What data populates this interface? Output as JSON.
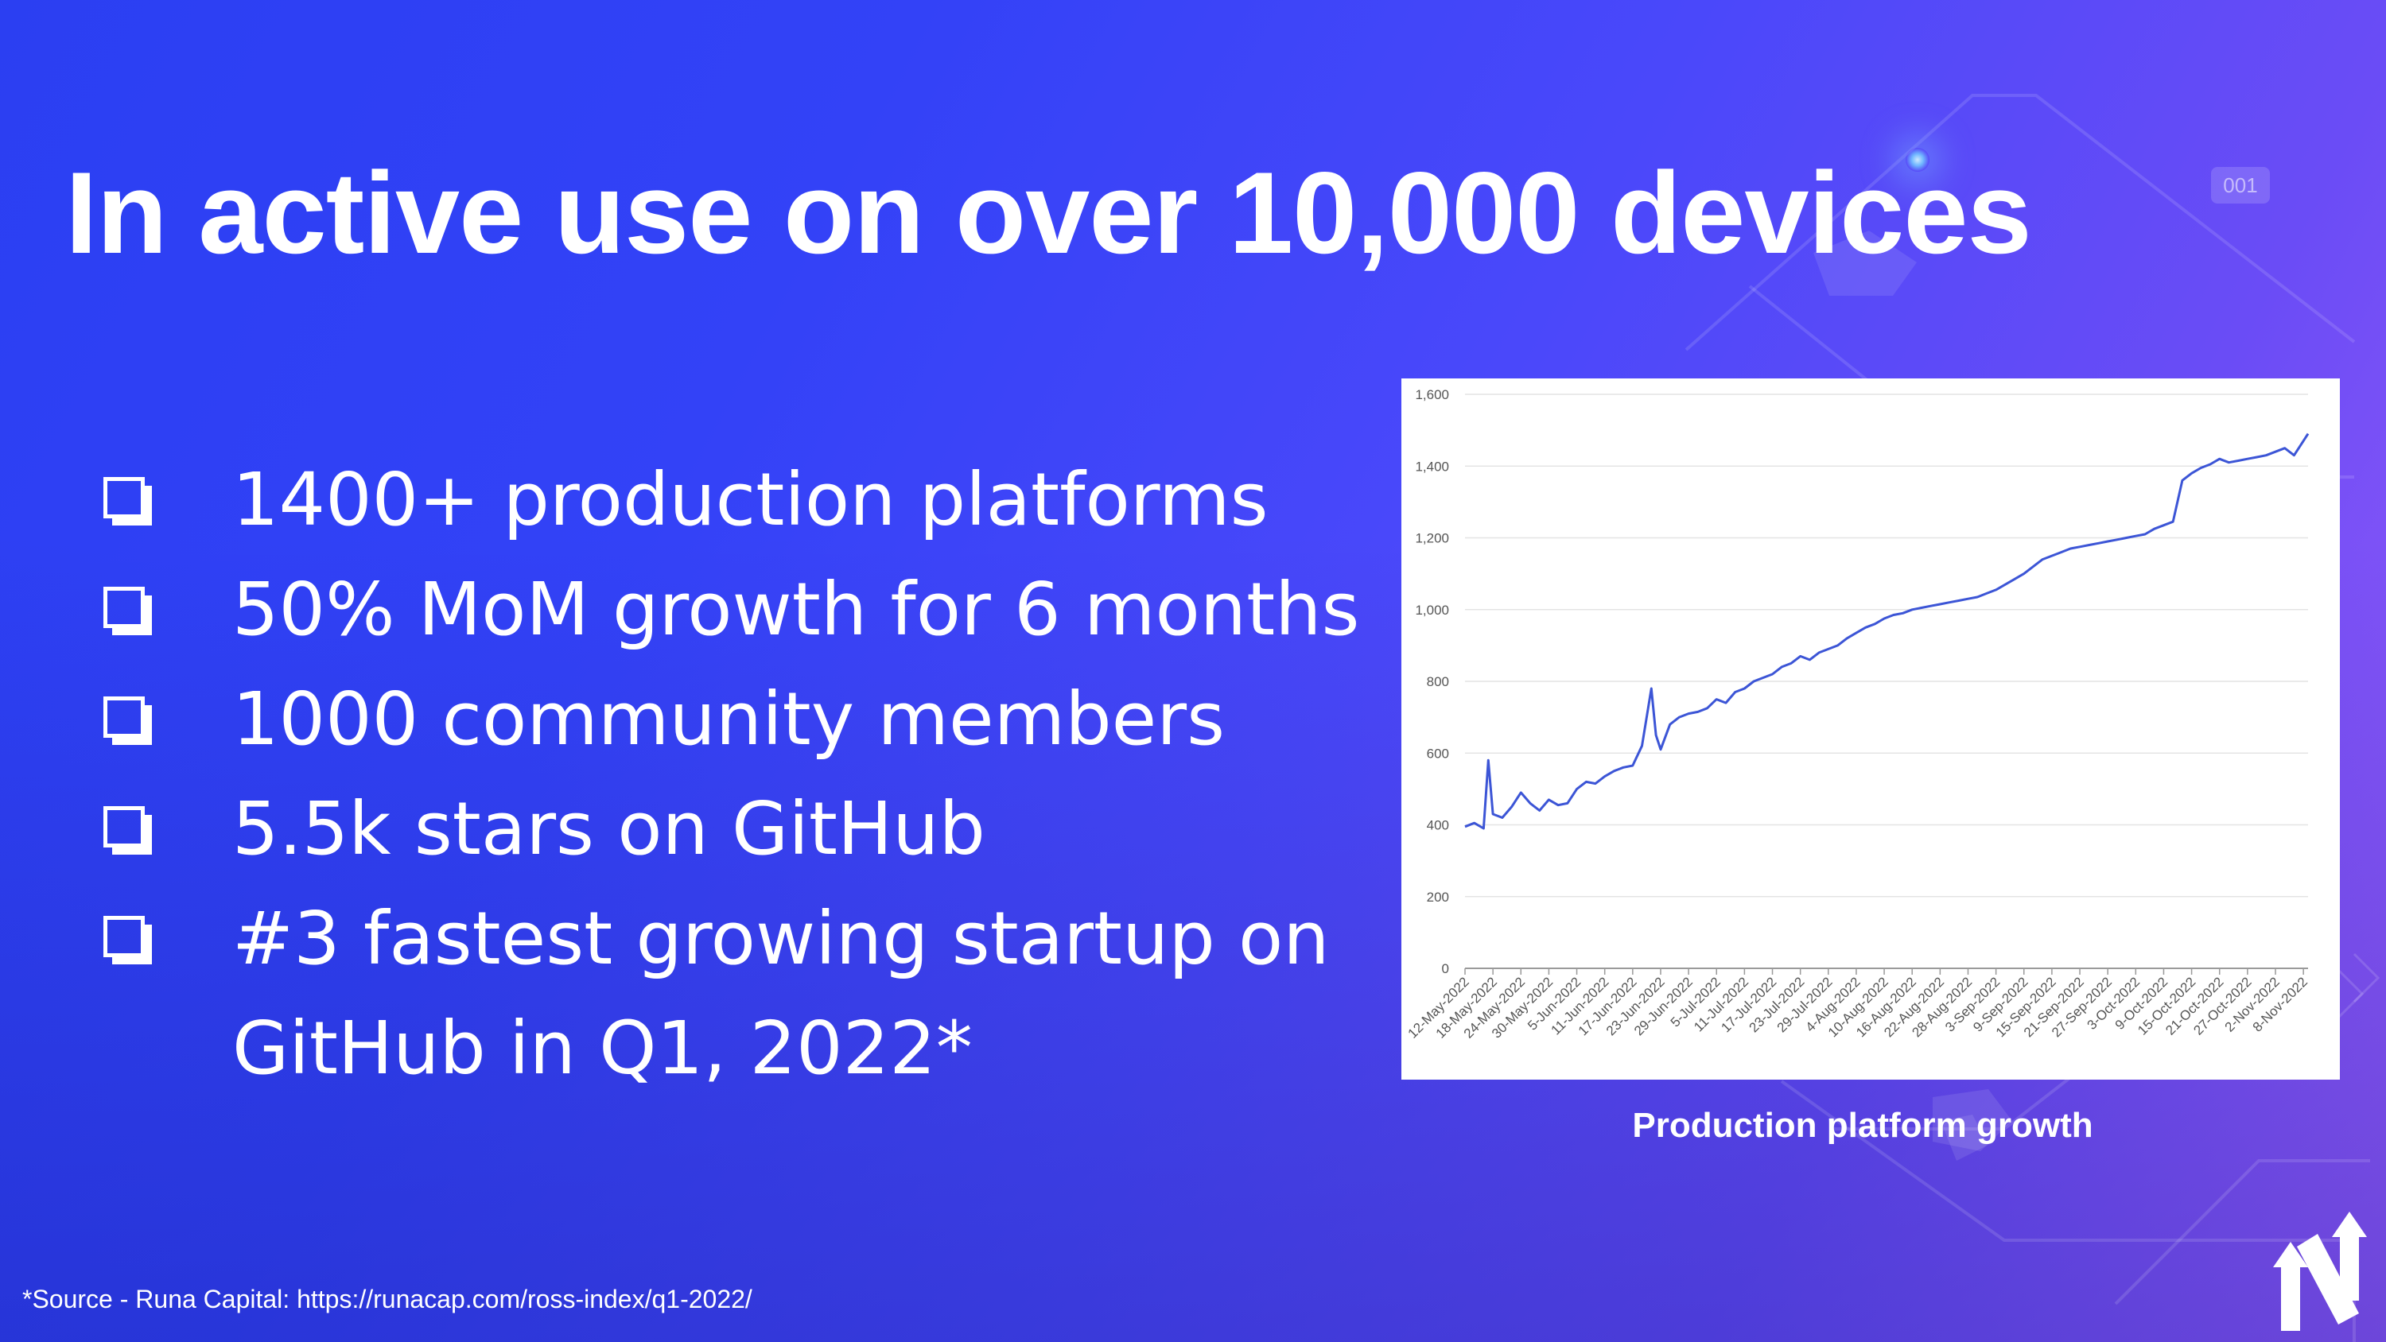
{
  "slide": {
    "title": "In active use on over 10,000 devices",
    "bullets": [
      "1400+ production platforms",
      "50% MoM growth for 6 months",
      "1000 community members",
      "5.5k stars on GitHub",
      "#3 fastest growing startup on GitHub in Q1, 2022*"
    ],
    "source_note": "*Source - Runa Capital: https://runacap.com/ross-index/q1-2022/",
    "chart_caption": "Production platform growth",
    "decor_bubble_text": "001",
    "colors": {
      "text": "#ffffff",
      "line": "#3c55d6",
      "grid": "#e4e4e4",
      "card": "#ffffff"
    }
  },
  "chart_data": {
    "type": "line",
    "title": "",
    "xlabel": "",
    "ylabel": "",
    "ylim": [
      0,
      1600
    ],
    "yticks": [
      0,
      200,
      400,
      600,
      800,
      1000,
      1200,
      1400,
      1600
    ],
    "ytick_labels": [
      "0",
      "200",
      "400",
      "600",
      "800",
      "1,000",
      "1,200",
      "1,400",
      "1,600"
    ],
    "x_tick_labels": [
      "12-May-2022",
      "18-May-2022",
      "24-May-2022",
      "30-May-2022",
      "5-Jun-2022",
      "11-Jun-2022",
      "17-Jun-2022",
      "23-Jun-2022",
      "29-Jun-2022",
      "5-Jul-2022",
      "11-Jul-2022",
      "17-Jul-2022",
      "23-Jul-2022",
      "29-Jul-2022",
      "4-Aug-2022",
      "10-Aug-2022",
      "16-Aug-2022",
      "22-Aug-2022",
      "28-Aug-2022",
      "3-Sep-2022",
      "9-Sep-2022",
      "15-Sep-2022",
      "21-Sep-2022",
      "27-Sep-2022",
      "3-Oct-2022",
      "9-Oct-2022",
      "15-Oct-2022",
      "21-Oct-2022",
      "27-Oct-2022",
      "2-Nov-2022",
      "8-Nov-2022"
    ],
    "grid": true,
    "legend": false,
    "series": [
      {
        "x": [
          "12-May-2022",
          "14-May-2022",
          "16-May-2022",
          "17-May-2022",
          "18-May-2022",
          "20-May-2022",
          "22-May-2022",
          "24-May-2022",
          "26-May-2022",
          "28-May-2022",
          "30-May-2022",
          "1-Jun-2022",
          "3-Jun-2022",
          "5-Jun-2022",
          "7-Jun-2022",
          "9-Jun-2022",
          "11-Jun-2022",
          "13-Jun-2022",
          "15-Jun-2022",
          "17-Jun-2022",
          "19-Jun-2022",
          "21-Jun-2022",
          "22-Jun-2022",
          "23-Jun-2022",
          "25-Jun-2022",
          "27-Jun-2022",
          "29-Jun-2022",
          "1-Jul-2022",
          "3-Jul-2022",
          "5-Jul-2022",
          "7-Jul-2022",
          "9-Jul-2022",
          "11-Jul-2022",
          "13-Jul-2022",
          "15-Jul-2022",
          "17-Jul-2022",
          "19-Jul-2022",
          "21-Jul-2022",
          "23-Jul-2022",
          "25-Jul-2022",
          "27-Jul-2022",
          "29-Jul-2022",
          "31-Jul-2022",
          "2-Aug-2022",
          "4-Aug-2022",
          "6-Aug-2022",
          "8-Aug-2022",
          "10-Aug-2022",
          "12-Aug-2022",
          "14-Aug-2022",
          "16-Aug-2022",
          "18-Aug-2022",
          "20-Aug-2022",
          "22-Aug-2022",
          "24-Aug-2022",
          "26-Aug-2022",
          "28-Aug-2022",
          "30-Aug-2022",
          "1-Sep-2022",
          "3-Sep-2022",
          "5-Sep-2022",
          "7-Sep-2022",
          "9-Sep-2022",
          "11-Sep-2022",
          "13-Sep-2022",
          "15-Sep-2022",
          "17-Sep-2022",
          "19-Sep-2022",
          "21-Sep-2022",
          "23-Sep-2022",
          "25-Sep-2022",
          "27-Sep-2022",
          "29-Sep-2022",
          "1-Oct-2022",
          "3-Oct-2022",
          "5-Oct-2022",
          "7-Oct-2022",
          "9-Oct-2022",
          "11-Oct-2022",
          "13-Oct-2022",
          "15-Oct-2022",
          "17-Oct-2022",
          "19-Oct-2022",
          "21-Oct-2022",
          "23-Oct-2022",
          "25-Oct-2022",
          "27-Oct-2022",
          "29-Oct-2022",
          "31-Oct-2022",
          "2-Nov-2022",
          "4-Nov-2022",
          "6-Nov-2022",
          "8-Nov-2022",
          "9-Nov-2022"
        ],
        "values": [
          395,
          405,
          390,
          580,
          430,
          420,
          450,
          490,
          460,
          440,
          470,
          455,
          460,
          500,
          520,
          515,
          535,
          550,
          560,
          565,
          620,
          780,
          650,
          610,
          680,
          700,
          710,
          715,
          725,
          750,
          740,
          770,
          780,
          800,
          810,
          820,
          840,
          850,
          870,
          860,
          880,
          890,
          900,
          920,
          935,
          950,
          960,
          975,
          985,
          990,
          1000,
          1005,
          1010,
          1015,
          1020,
          1025,
          1030,
          1035,
          1045,
          1055,
          1070,
          1085,
          1100,
          1120,
          1140,
          1150,
          1160,
          1170,
          1175,
          1180,
          1185,
          1190,
          1195,
          1200,
          1205,
          1210,
          1225,
          1235,
          1245,
          1360,
          1380,
          1395,
          1405,
          1420,
          1410,
          1415,
          1420,
          1425,
          1430,
          1440,
          1450,
          1430,
          1470,
          1490
        ]
      }
    ]
  }
}
